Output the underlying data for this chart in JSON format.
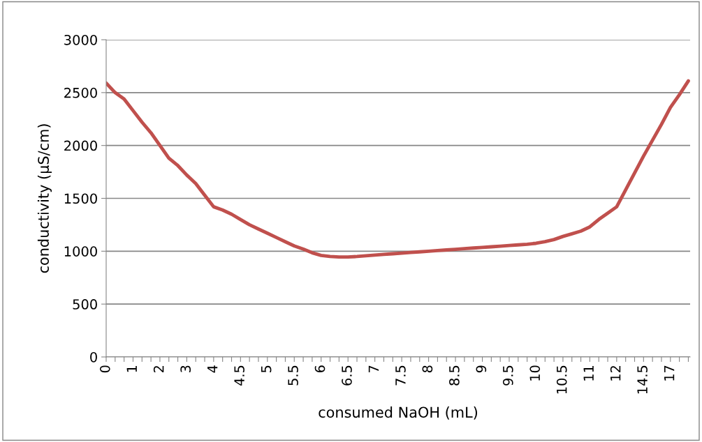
{
  "chart_data": {
    "type": "line",
    "xlabel": "consumed NaOH (mL)",
    "ylabel": "conductivity (µS/cm)",
    "categories": [
      "0",
      null,
      null,
      "1",
      null,
      null,
      "2",
      null,
      null,
      "3",
      null,
      null,
      "4",
      null,
      null,
      "4.5",
      null,
      null,
      "5",
      null,
      null,
      "5.5",
      null,
      null,
      "6",
      null,
      null,
      "6.5",
      null,
      null,
      "7",
      null,
      null,
      "7.5",
      null,
      null,
      "8",
      null,
      null,
      "8.5",
      null,
      null,
      "9",
      null,
      null,
      "9.5",
      null,
      null,
      "10",
      null,
      null,
      "10.5",
      null,
      null,
      "11",
      null,
      null,
      "12",
      null,
      null,
      "14.5",
      null,
      null,
      "17",
      null,
      null
    ],
    "series": [
      {
        "color": "#c0504d",
        "values": [
          2590,
          2500,
          2440,
          2330,
          2220,
          2120,
          2000,
          1880,
          1810,
          1720,
          1640,
          1530,
          1420,
          1390,
          1350,
          1300,
          1250,
          1210,
          1170,
          1130,
          1090,
          1050,
          1020,
          985,
          960,
          950,
          945,
          945,
          950,
          957,
          963,
          970,
          976,
          982,
          988,
          994,
          1000,
          1006,
          1012,
          1018,
          1024,
          1030,
          1036,
          1042,
          1048,
          1054,
          1060,
          1066,
          1075,
          1090,
          1110,
          1140,
          1165,
          1190,
          1230,
          1300,
          1360,
          1420,
          1580,
          1740,
          1900,
          2050,
          2200,
          2360,
          2480,
          2610
        ]
      }
    ],
    "ylim": [
      0,
      3000
    ],
    "yticks": [
      0,
      500,
      1000,
      1500,
      2000,
      2500,
      3000
    ],
    "grid": "y",
    "legend": false,
    "marker": "none",
    "line_style": "solid"
  }
}
